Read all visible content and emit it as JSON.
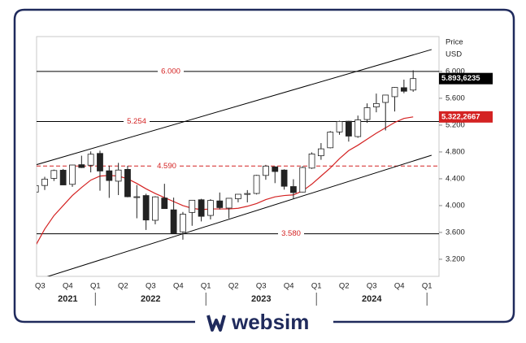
{
  "chart_data": {
    "type": "candlestick",
    "axis_title": [
      "Price",
      "USD"
    ],
    "categories": [
      null,
      "Q3",
      null,
      null,
      "Q4",
      null,
      null,
      "Q1",
      null,
      null,
      "Q2",
      null,
      null,
      "Q3",
      null,
      null,
      "Q4",
      null,
      null,
      "Q1",
      null,
      null,
      "Q2",
      null,
      null,
      "Q3",
      null,
      null,
      "Q4",
      null,
      null,
      "Q1",
      null,
      null,
      "Q2",
      null,
      null,
      "Q3",
      null,
      null,
      "Q4",
      null,
      null,
      "Q1"
    ],
    "years": [
      "2021",
      "2022",
      "2023",
      "2024"
    ],
    "ohlc": {
      "color_up": "#ffffff",
      "color_down": "#222222",
      "open": [
        4202,
        4300,
        4406,
        4528,
        4317,
        4610,
        4602,
        4778,
        4519,
        4364,
        4540,
        4131,
        4150,
        3781,
        4113,
        3937,
        3609,
        3898,
        4087,
        3853,
        4070,
        3963,
        4102,
        4167,
        4181,
        4450,
        4578,
        4530,
        4284,
        4202,
        4559,
        4743,
        4862,
        5098,
        5258,
        5029,
        5283,
        5471,
        5538,
        5624,
        5758,
        5723,
        null,
        null
      ],
      "high": [
        4302,
        4429,
        4537,
        4546,
        4608,
        4744,
        4808,
        4819,
        4595,
        4637,
        4593,
        4307,
        4177,
        4140,
        4325,
        4119,
        3905,
        4080,
        4101,
        4095,
        4195,
        4110,
        4170,
        4231,
        4458,
        4607,
        4584,
        4541,
        4393,
        4587,
        4794,
        4932,
        5111,
        5265,
        5264,
        5342,
        5524,
        5670,
        5651,
        5768,
        5878,
        6017,
        null,
        null
      ],
      "low": [
        4164,
        4233,
        4367,
        4306,
        4279,
        4560,
        4495,
        4222,
        4115,
        4157,
        4124,
        3811,
        3637,
        3721,
        3955,
        3585,
        3492,
        3699,
        3764,
        3794,
        3943,
        3809,
        4049,
        4048,
        4166,
        4385,
        4335,
        4238,
        4104,
        4197,
        4547,
        4683,
        4853,
        5056,
        4954,
        5011,
        5234,
        5391,
        5120,
        5403,
        5675,
        5697,
        null,
        null
      ],
      "close": [
        4298,
        4395,
        4523,
        4308,
        4605,
        4567,
        4766,
        4516,
        4374,
        4530,
        4132,
        4132,
        3785,
        4130,
        3955,
        3586,
        3872,
        4080,
        3840,
        4077,
        3970,
        4109,
        4169,
        4180,
        4450,
        4589,
        4508,
        4288,
        4194,
        4568,
        4770,
        4846,
        5096,
        5254,
        5036,
        5278,
        5460,
        5522,
        5648,
        5762,
        5705,
        5893.6235,
        null,
        null
      ],
      "value_labels": [
        null,
        null,
        null,
        null,
        null,
        null,
        null,
        null,
        null,
        null,
        null,
        null,
        null,
        null,
        null,
        null,
        null,
        null,
        null,
        null,
        null,
        null,
        null,
        null,
        null,
        null,
        null,
        null,
        null,
        null,
        null,
        null,
        null,
        null,
        null,
        null,
        null,
        null,
        null,
        null,
        null,
        "5.893,6235",
        null,
        null
      ]
    },
    "moving_average": {
      "color": "#d42222",
      "values": [
        3400,
        3650,
        3850,
        4000,
        4150,
        4270,
        4380,
        4440,
        4450,
        4440,
        4400,
        4330,
        4250,
        4180,
        4120,
        4060,
        4000,
        3960,
        3940,
        3950,
        3950,
        3950,
        3960,
        3990,
        4030,
        4090,
        4130,
        4150,
        4160,
        4220,
        4320,
        4440,
        4560,
        4700,
        4820,
        4900,
        4990,
        5080,
        5160,
        5240,
        5300,
        5322.2667,
        null,
        null
      ],
      "value_labels": [
        null,
        null,
        null,
        null,
        null,
        null,
        null,
        null,
        null,
        null,
        null,
        null,
        null,
        null,
        null,
        null,
        null,
        null,
        null,
        null,
        null,
        null,
        null,
        null,
        null,
        null,
        null,
        null,
        null,
        null,
        null,
        null,
        null,
        null,
        null,
        null,
        null,
        null,
        null,
        null,
        null,
        "5.322,2667",
        null,
        null
      ]
    },
    "trendlines": [
      {
        "color": "#000000",
        "values": [
          4606,
          6327
        ]
      },
      {
        "color": "#000000",
        "values": [
          2885,
          4751
        ]
      }
    ],
    "levels": [
      {
        "value": 6000,
        "label": "6.000",
        "color": "#000000",
        "label_color": "#d42222",
        "dashed": false
      },
      {
        "value": 5254,
        "label": "5.254",
        "color": "#000000",
        "label_color": "#d42222",
        "dashed": false
      },
      {
        "value": 4590,
        "label": "4.590",
        "color": "#d42222",
        "label_color": "#d42222",
        "dashed": true
      },
      {
        "value": 3580,
        "label": "3.580",
        "color": "#000000",
        "label_color": "#d42222",
        "dashed": false
      }
    ],
    "ylim": [
      2945,
      6520
    ],
    "yticks": [
      {
        "value": 3200,
        "label": "3.200"
      },
      {
        "value": 3600,
        "label": "3.600"
      },
      {
        "value": 4000,
        "label": "4.000"
      },
      {
        "value": 4400,
        "label": "4.400"
      },
      {
        "value": 4800,
        "label": "4.800"
      },
      {
        "value": 5200,
        "label": "5.200"
      },
      {
        "value": 5600,
        "label": "5.600"
      },
      {
        "value": 6000,
        "label": "6.000"
      }
    ]
  },
  "brand": "websim"
}
